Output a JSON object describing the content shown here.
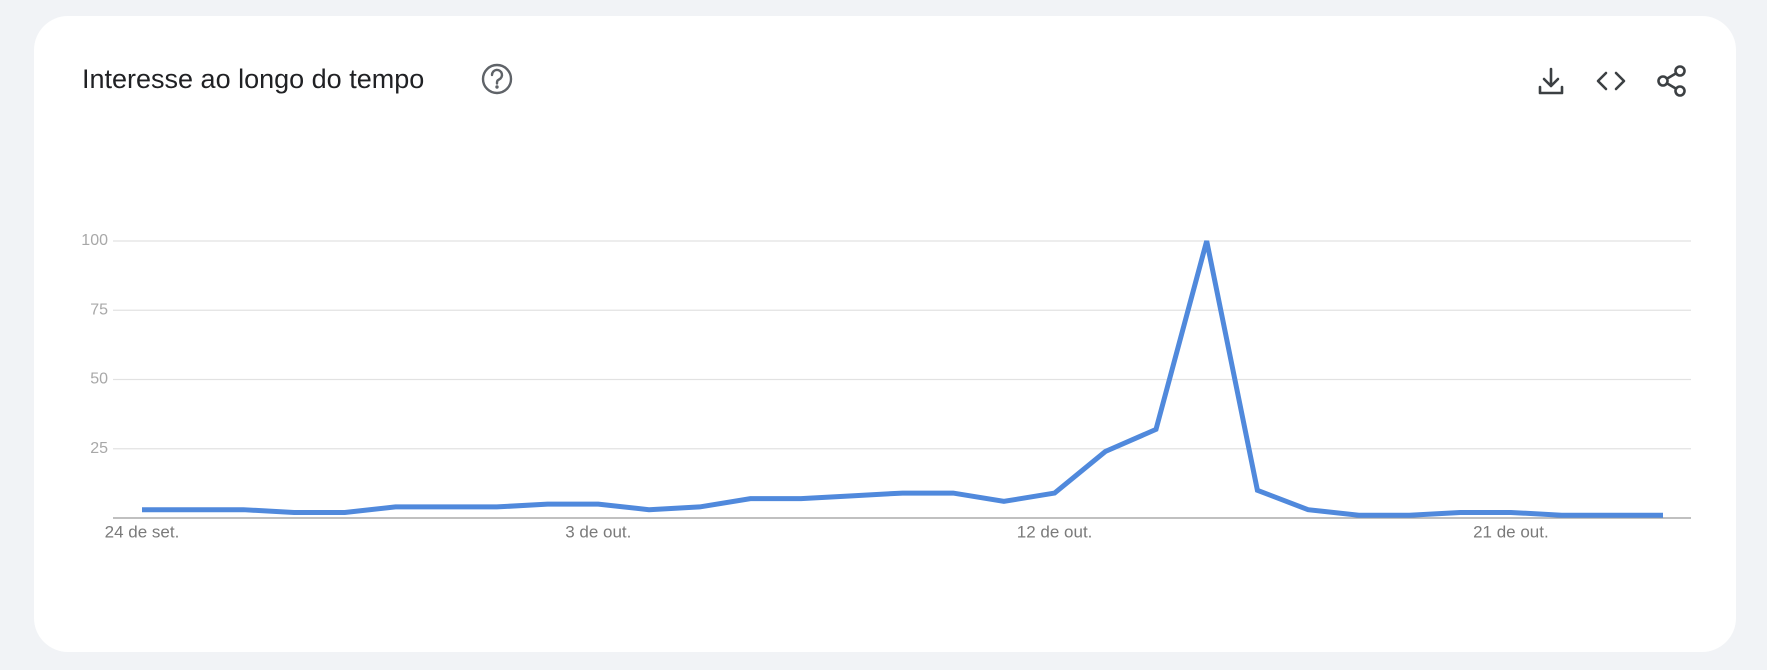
{
  "chart_data": {
    "type": "line",
    "title": "Interesse ao longo do tempo",
    "categories": [
      "24 de set.",
      null,
      null,
      null,
      null,
      null,
      null,
      null,
      null,
      "3 de out.",
      null,
      null,
      null,
      null,
      null,
      null,
      null,
      null,
      "12 de out.",
      null,
      null,
      null,
      null,
      null,
      null,
      null,
      null,
      "21 de out.",
      null,
      null,
      null
    ],
    "values": [
      3,
      3,
      3,
      2,
      2,
      4,
      4,
      4,
      5,
      5,
      3,
      4,
      7,
      7,
      8,
      9,
      9,
      6,
      9,
      24,
      32,
      100,
      10,
      3,
      1,
      1,
      2,
      2,
      1,
      1,
      1
    ],
    "color": "#5089dc",
    "ylim": [
      0,
      100
    ],
    "yticks": [
      25,
      50,
      75,
      100
    ],
    "grid": true
  }
}
